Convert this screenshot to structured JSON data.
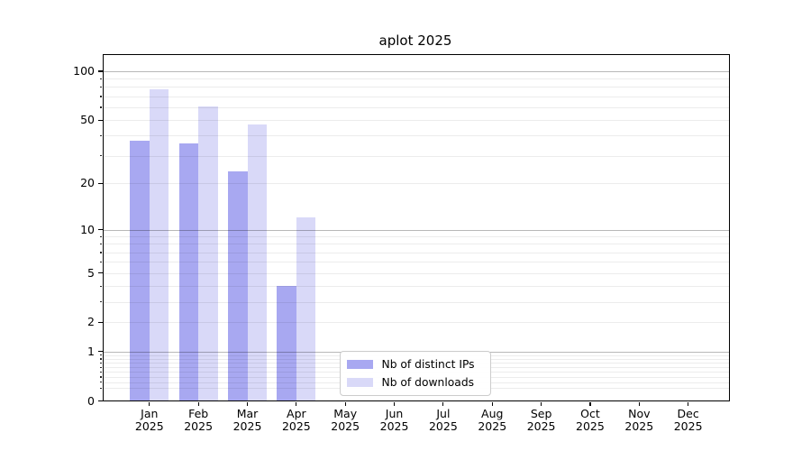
{
  "chart_data": {
    "type": "bar",
    "title": "aplot 2025",
    "categories": [
      "Jan",
      "Feb",
      "Mar",
      "Apr",
      "May",
      "Jun",
      "Jul",
      "Aug",
      "Sep",
      "Oct",
      "Nov",
      "Dec"
    ],
    "year_label": "2025",
    "series": [
      {
        "name": "Nb of distinct IPs",
        "color": "#a8a8f1",
        "values": [
          37,
          36,
          24,
          4,
          0,
          0,
          0,
          0,
          0,
          0,
          0,
          0
        ]
      },
      {
        "name": "Nb of downloads",
        "color": "#d9d9f8",
        "values": [
          77,
          61,
          47,
          12,
          0,
          0,
          0,
          0,
          0,
          0,
          0,
          0
        ]
      }
    ],
    "xlabel": "",
    "ylabel": "",
    "yscale": "log1p",
    "ylim": [
      0,
      127.4
    ],
    "yticks": [
      0,
      1,
      2,
      5,
      10,
      20,
      50,
      100
    ],
    "grid": {
      "on": true,
      "drawn_above_bars": true,
      "strong_values": [
        1,
        10,
        100
      ],
      "faint_values": [
        0.2,
        0.3,
        0.4,
        0.5,
        0.6,
        0.7,
        0.8,
        0.9,
        2,
        3,
        4,
        5,
        6,
        7,
        8,
        9,
        20,
        30,
        40,
        50,
        60,
        70,
        80,
        90
      ]
    },
    "legend_position": "lower center",
    "colors": {
      "axes": "#000000",
      "background": "#ffffff",
      "grid_strong": "rgba(0,0,0,0.28)",
      "grid_faint": "rgba(0,0,0,0.075)"
    }
  }
}
